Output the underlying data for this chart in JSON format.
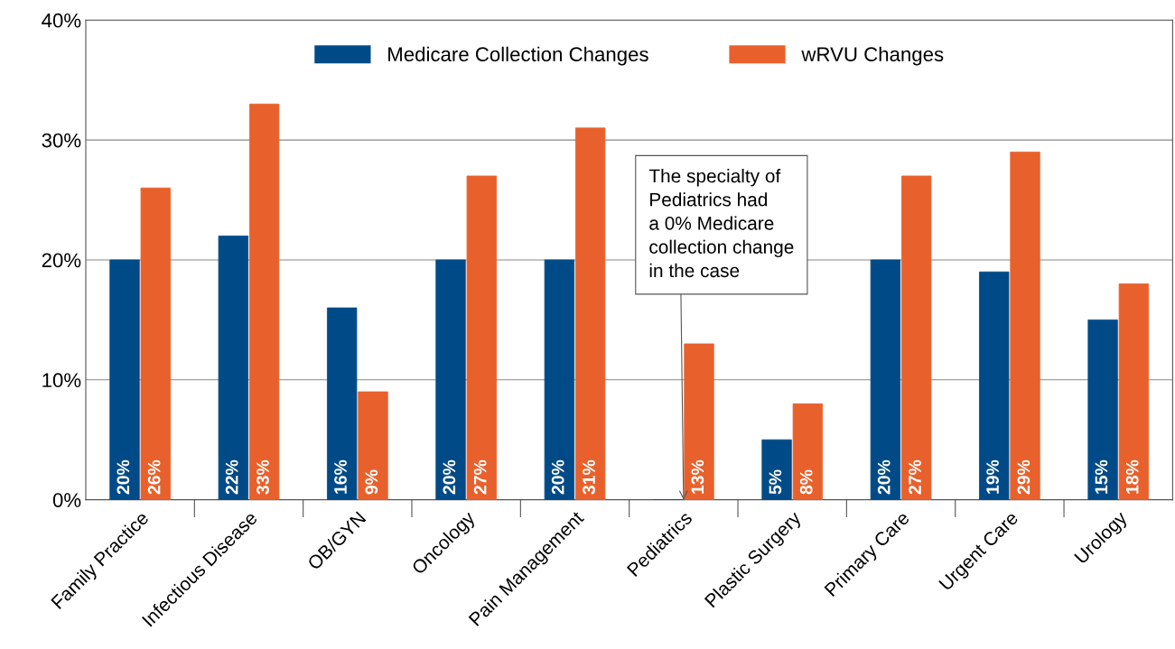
{
  "chart_data": {
    "type": "bar",
    "categories": [
      "Family Practice",
      "Infectious Disease",
      "OB/GYN",
      "Oncology",
      "Pain Management",
      "Pediatrics",
      "Plastic Surgery",
      "Primary Care",
      "Urgent Care",
      "Urology"
    ],
    "series": [
      {
        "name": "Medicare Collection Changes",
        "color": "#004b87",
        "values": [
          20,
          22,
          16,
          20,
          20,
          0,
          5,
          20,
          19,
          15
        ],
        "value_labels": [
          "20%",
          "22%",
          "16%",
          "20%",
          "20%",
          null,
          "5%",
          "20%",
          "19%",
          "15%"
        ]
      },
      {
        "name": "wRVU Changes",
        "color": "#e8612c",
        "values": [
          26,
          33,
          9,
          27,
          31,
          13,
          8,
          27,
          29,
          18
        ],
        "value_labels": [
          "26%",
          "33%",
          "9%",
          "27%",
          "31%",
          "13%",
          "8%",
          "27%",
          "29%",
          "18%"
        ]
      }
    ],
    "ylim": [
      0,
      40
    ],
    "yticks": [
      {
        "value": 0,
        "label": "0%"
      },
      {
        "value": 10,
        "label": "10%"
      },
      {
        "value": 20,
        "label": "20%"
      },
      {
        "value": 30,
        "label": "30%"
      },
      {
        "value": 40,
        "label": "40%"
      }
    ],
    "grid": "y",
    "legend": "top",
    "annotations": [
      {
        "text": "The specialty of\nPediatrics had\na 0% Medicare\ncollection change\nin the case",
        "x": "Pediatrics",
        "y": 0
      }
    ]
  }
}
